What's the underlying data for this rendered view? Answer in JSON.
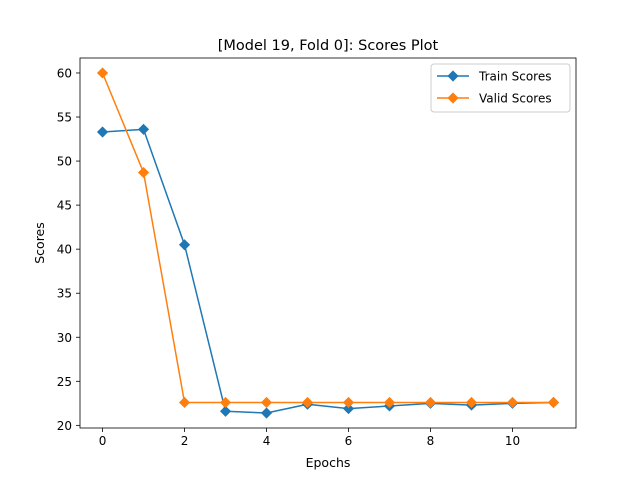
{
  "chart_data": {
    "type": "line",
    "title": "[Model 19, Fold 0]: Scores Plot",
    "xlabel": "Epochs",
    "ylabel": "Scores",
    "xlim": [
      -0.55,
      11.55
    ],
    "ylim": [
      19.7,
      61.7
    ],
    "xticks": [
      0,
      2,
      4,
      6,
      8,
      10
    ],
    "yticks": [
      20,
      25,
      30,
      35,
      40,
      45,
      50,
      55,
      60
    ],
    "grid": false,
    "legend_position": "top-right",
    "x": [
      0,
      1,
      2,
      3,
      4,
      5,
      6,
      7,
      8,
      9,
      10,
      11
    ],
    "series": [
      {
        "name": "Train Scores",
        "color": "#1f77b4",
        "marker": "diamond",
        "values": [
          53.3,
          53.6,
          40.5,
          21.6,
          21.4,
          22.4,
          21.9,
          22.2,
          22.5,
          22.3,
          22.5,
          22.6
        ]
      },
      {
        "name": "Valid Scores",
        "color": "#ff7f0e",
        "marker": "diamond",
        "values": [
          60.0,
          48.7,
          22.6,
          22.6,
          22.6,
          22.6,
          22.6,
          22.6,
          22.6,
          22.6,
          22.6,
          22.6
        ]
      }
    ]
  }
}
